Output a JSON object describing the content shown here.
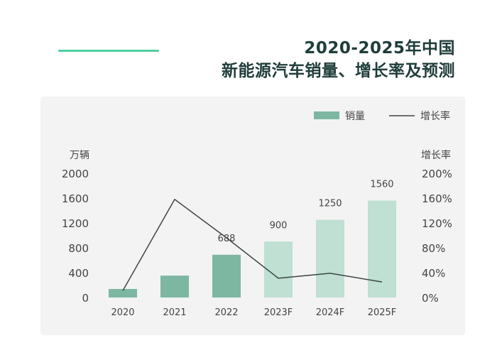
{
  "header": {
    "title_line1": "2020-2025年中国",
    "title_line2": "新能源汽车销量、增长率及预测"
  },
  "colors": {
    "accent_line": "#4fcf9f",
    "title": "#1f3d3a",
    "bar_actual": "#7db7a2",
    "bar_forecast": "#bfe0d3",
    "line": "#3e4643",
    "card_bg": "#f3f3f3"
  },
  "chart_data": {
    "type": "bar+line",
    "categories": [
      "2020",
      "2021",
      "2022",
      "2023F",
      "2024F",
      "2025F"
    ],
    "series": [
      {
        "name": "销量",
        "type": "bar",
        "axis": "left",
        "values": [
          137,
          352,
          688,
          900,
          1250,
          1560
        ],
        "data_labels": [
          null,
          null,
          "688",
          "900",
          "1250",
          "1560"
        ]
      },
      {
        "name": "增长率",
        "type": "line",
        "axis": "right",
        "values": [
          11,
          158,
          96,
          31,
          39,
          25
        ]
      }
    ],
    "left_axis": {
      "label": "万辆",
      "min": 0,
      "max": 2000,
      "ticks": [
        "0",
        "400",
        "800",
        "1200",
        "1600",
        "2000"
      ]
    },
    "right_axis": {
      "label": "增长率",
      "min": 0,
      "max": 200,
      "ticks": [
        "0%",
        "40%",
        "80%",
        "120%",
        "160%",
        "200%"
      ]
    },
    "forecast_categories": [
      "2023F",
      "2024F",
      "2025F"
    ],
    "legend_position": "top-right",
    "grid": false
  }
}
